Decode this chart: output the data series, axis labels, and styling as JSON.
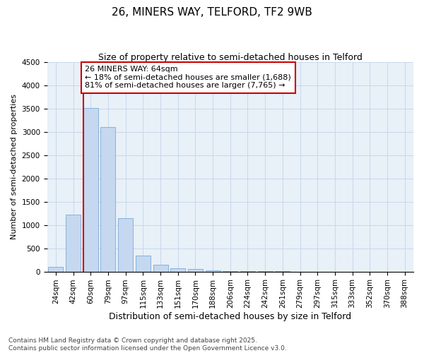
{
  "title": "26, MINERS WAY, TELFORD, TF2 9WB",
  "subtitle": "Size of property relative to semi-detached houses in Telford",
  "xlabel": "Distribution of semi-detached houses by size in Telford",
  "ylabel": "Number of semi-detached properties",
  "categories": [
    "24sqm",
    "42sqm",
    "60sqm",
    "79sqm",
    "97sqm",
    "115sqm",
    "133sqm",
    "151sqm",
    "170sqm",
    "188sqm",
    "206sqm",
    "224sqm",
    "242sqm",
    "261sqm",
    "279sqm",
    "297sqm",
    "315sqm",
    "333sqm",
    "352sqm",
    "370sqm",
    "388sqm"
  ],
  "values": [
    100,
    1220,
    3520,
    3100,
    1150,
    340,
    150,
    75,
    50,
    30,
    12,
    6,
    4,
    2,
    1,
    1,
    0,
    0,
    0,
    0,
    0
  ],
  "bar_color": "#c5d8f0",
  "bar_edge_color": "#7aaad4",
  "grid_color": "#c8d8ea",
  "background_color": "#e8f0f8",
  "property_line_x": 1.575,
  "property_size": 64,
  "pct_smaller": 18,
  "pct_larger": 81,
  "count_smaller": 1688,
  "count_larger": 7765,
  "annotation_box_color": "#cc0000",
  "ylim": [
    0,
    4500
  ],
  "yticks": [
    0,
    500,
    1000,
    1500,
    2000,
    2500,
    3000,
    3500,
    4000,
    4500
  ],
  "footer": "Contains HM Land Registry data © Crown copyright and database right 2025.\nContains public sector information licensed under the Open Government Licence v3.0.",
  "title_fontsize": 11,
  "subtitle_fontsize": 9,
  "xlabel_fontsize": 9,
  "ylabel_fontsize": 8,
  "tick_fontsize": 7.5,
  "annot_fontsize": 8,
  "footer_fontsize": 6.5
}
